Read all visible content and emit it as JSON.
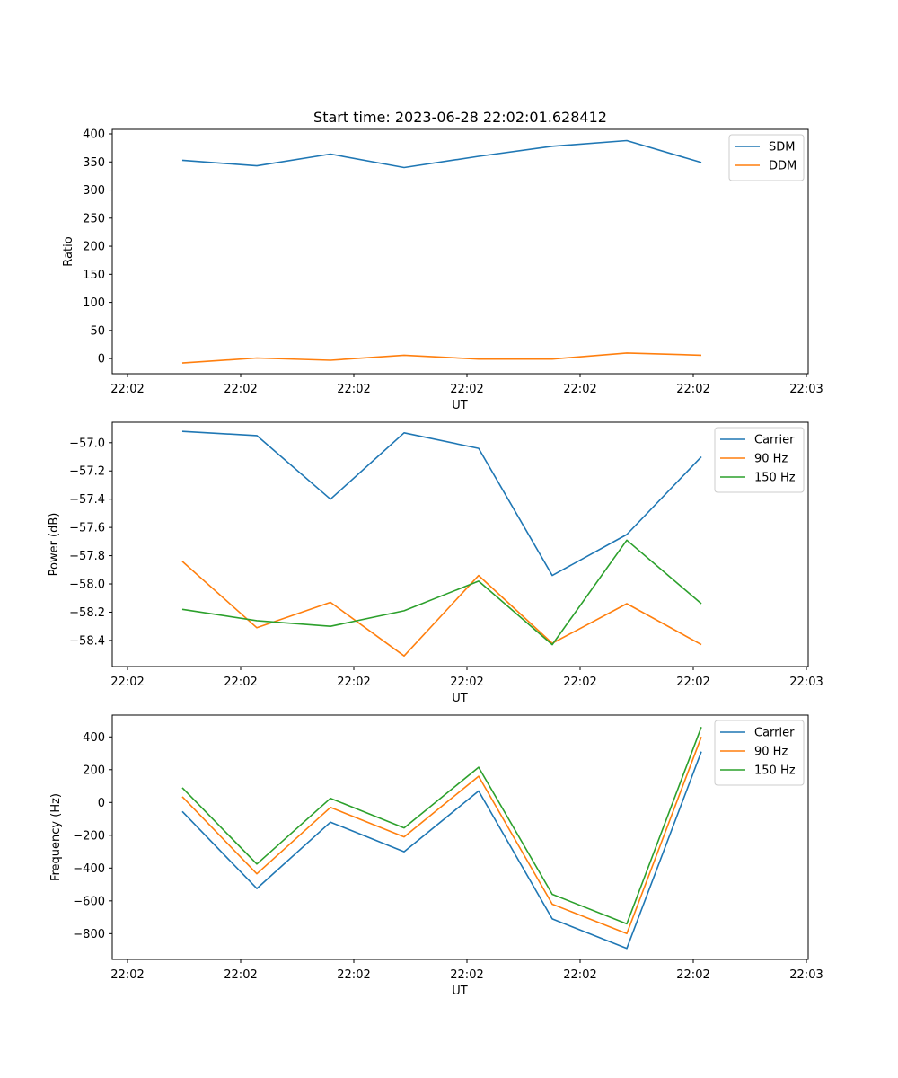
{
  "figure": {
    "title": "Start time: 2023-06-28 22:02:01.628412"
  },
  "chart_data": [
    {
      "type": "line",
      "title": "Start time: 2023-06-28 22:02:01.628412",
      "xlabel": "UT",
      "ylabel": "Ratio",
      "x_tick_labels": [
        "22:02",
        "22:02",
        "22:02",
        "22:02",
        "22:02",
        "22:02",
        "22:02",
        "22:03"
      ],
      "x_index": [
        1,
        2,
        3,
        4,
        5,
        6,
        7,
        8
      ],
      "y_ticks": [
        0,
        50,
        100,
        150,
        200,
        250,
        300,
        350,
        400
      ],
      "ylim": [
        -27,
        408
      ],
      "legend": "top-right",
      "series": [
        {
          "name": "SDM",
          "color": "#1f77b4",
          "values": [
            353,
            343,
            364,
            340,
            360,
            378,
            388,
            349
          ]
        },
        {
          "name": "DDM",
          "color": "#ff7f0e",
          "values": [
            -8,
            1,
            -3,
            6,
            -1,
            -1,
            10,
            6
          ]
        }
      ]
    },
    {
      "type": "line",
      "xlabel": "UT",
      "ylabel": "Power (dB)",
      "x_tick_labels": [
        "22:02",
        "22:02",
        "22:02",
        "22:02",
        "22:02",
        "22:02",
        "22:02",
        "22:03"
      ],
      "x_index": [
        1,
        2,
        3,
        4,
        5,
        6,
        7,
        8
      ],
      "y_ticks": [
        -58.4,
        -58.2,
        -58.0,
        -57.8,
        -57.6,
        -57.4,
        -57.2,
        -57.0
      ],
      "y_tick_labels": [
        "−58.4",
        "−58.2",
        "−58.0",
        "−57.8",
        "−57.6",
        "−57.4",
        "−57.2",
        "−57.0"
      ],
      "ylim": [
        -58.585,
        -56.855
      ],
      "legend": "top-right",
      "series": [
        {
          "name": "Carrier",
          "color": "#1f77b4",
          "values": [
            -56.92,
            -56.95,
            -57.4,
            -56.93,
            -57.04,
            -57.94,
            -57.65,
            -57.1
          ]
        },
        {
          "name": "90 Hz",
          "color": "#ff7f0e",
          "values": [
            -57.84,
            -58.31,
            -58.13,
            -58.51,
            -57.94,
            -58.42,
            -58.14,
            -58.43
          ]
        },
        {
          "name": "150 Hz",
          "color": "#2ca02c",
          "values": [
            -58.18,
            -58.26,
            -58.3,
            -58.19,
            -57.98,
            -58.43,
            -57.69,
            -58.14
          ]
        }
      ]
    },
    {
      "type": "line",
      "xlabel": "UT",
      "ylabel": "Frequency (Hz)",
      "x_tick_labels": [
        "22:02",
        "22:02",
        "22:02",
        "22:02",
        "22:02",
        "22:02",
        "22:02",
        "22:03"
      ],
      "x_index": [
        1,
        2,
        3,
        4,
        5,
        6,
        7,
        8
      ],
      "y_ticks": [
        -800,
        -600,
        -400,
        -200,
        0,
        200,
        400
      ],
      "y_tick_labels": [
        "−800",
        "−600",
        "−400",
        "−200",
        "0",
        "200",
        "400"
      ],
      "ylim": [
        -957,
        533
      ],
      "legend": "top-right",
      "series": [
        {
          "name": "Carrier",
          "color": "#1f77b4",
          "values": [
            -55,
            -525,
            -120,
            -300,
            70,
            -710,
            -890,
            310
          ]
        },
        {
          "name": "90 Hz",
          "color": "#ff7f0e",
          "values": [
            35,
            -435,
            -30,
            -210,
            160,
            -620,
            -800,
            400
          ]
        },
        {
          "name": "150 Hz",
          "color": "#2ca02c",
          "values": [
            90,
            -375,
            25,
            -155,
            215,
            -560,
            -740,
            460
          ]
        }
      ]
    }
  ]
}
